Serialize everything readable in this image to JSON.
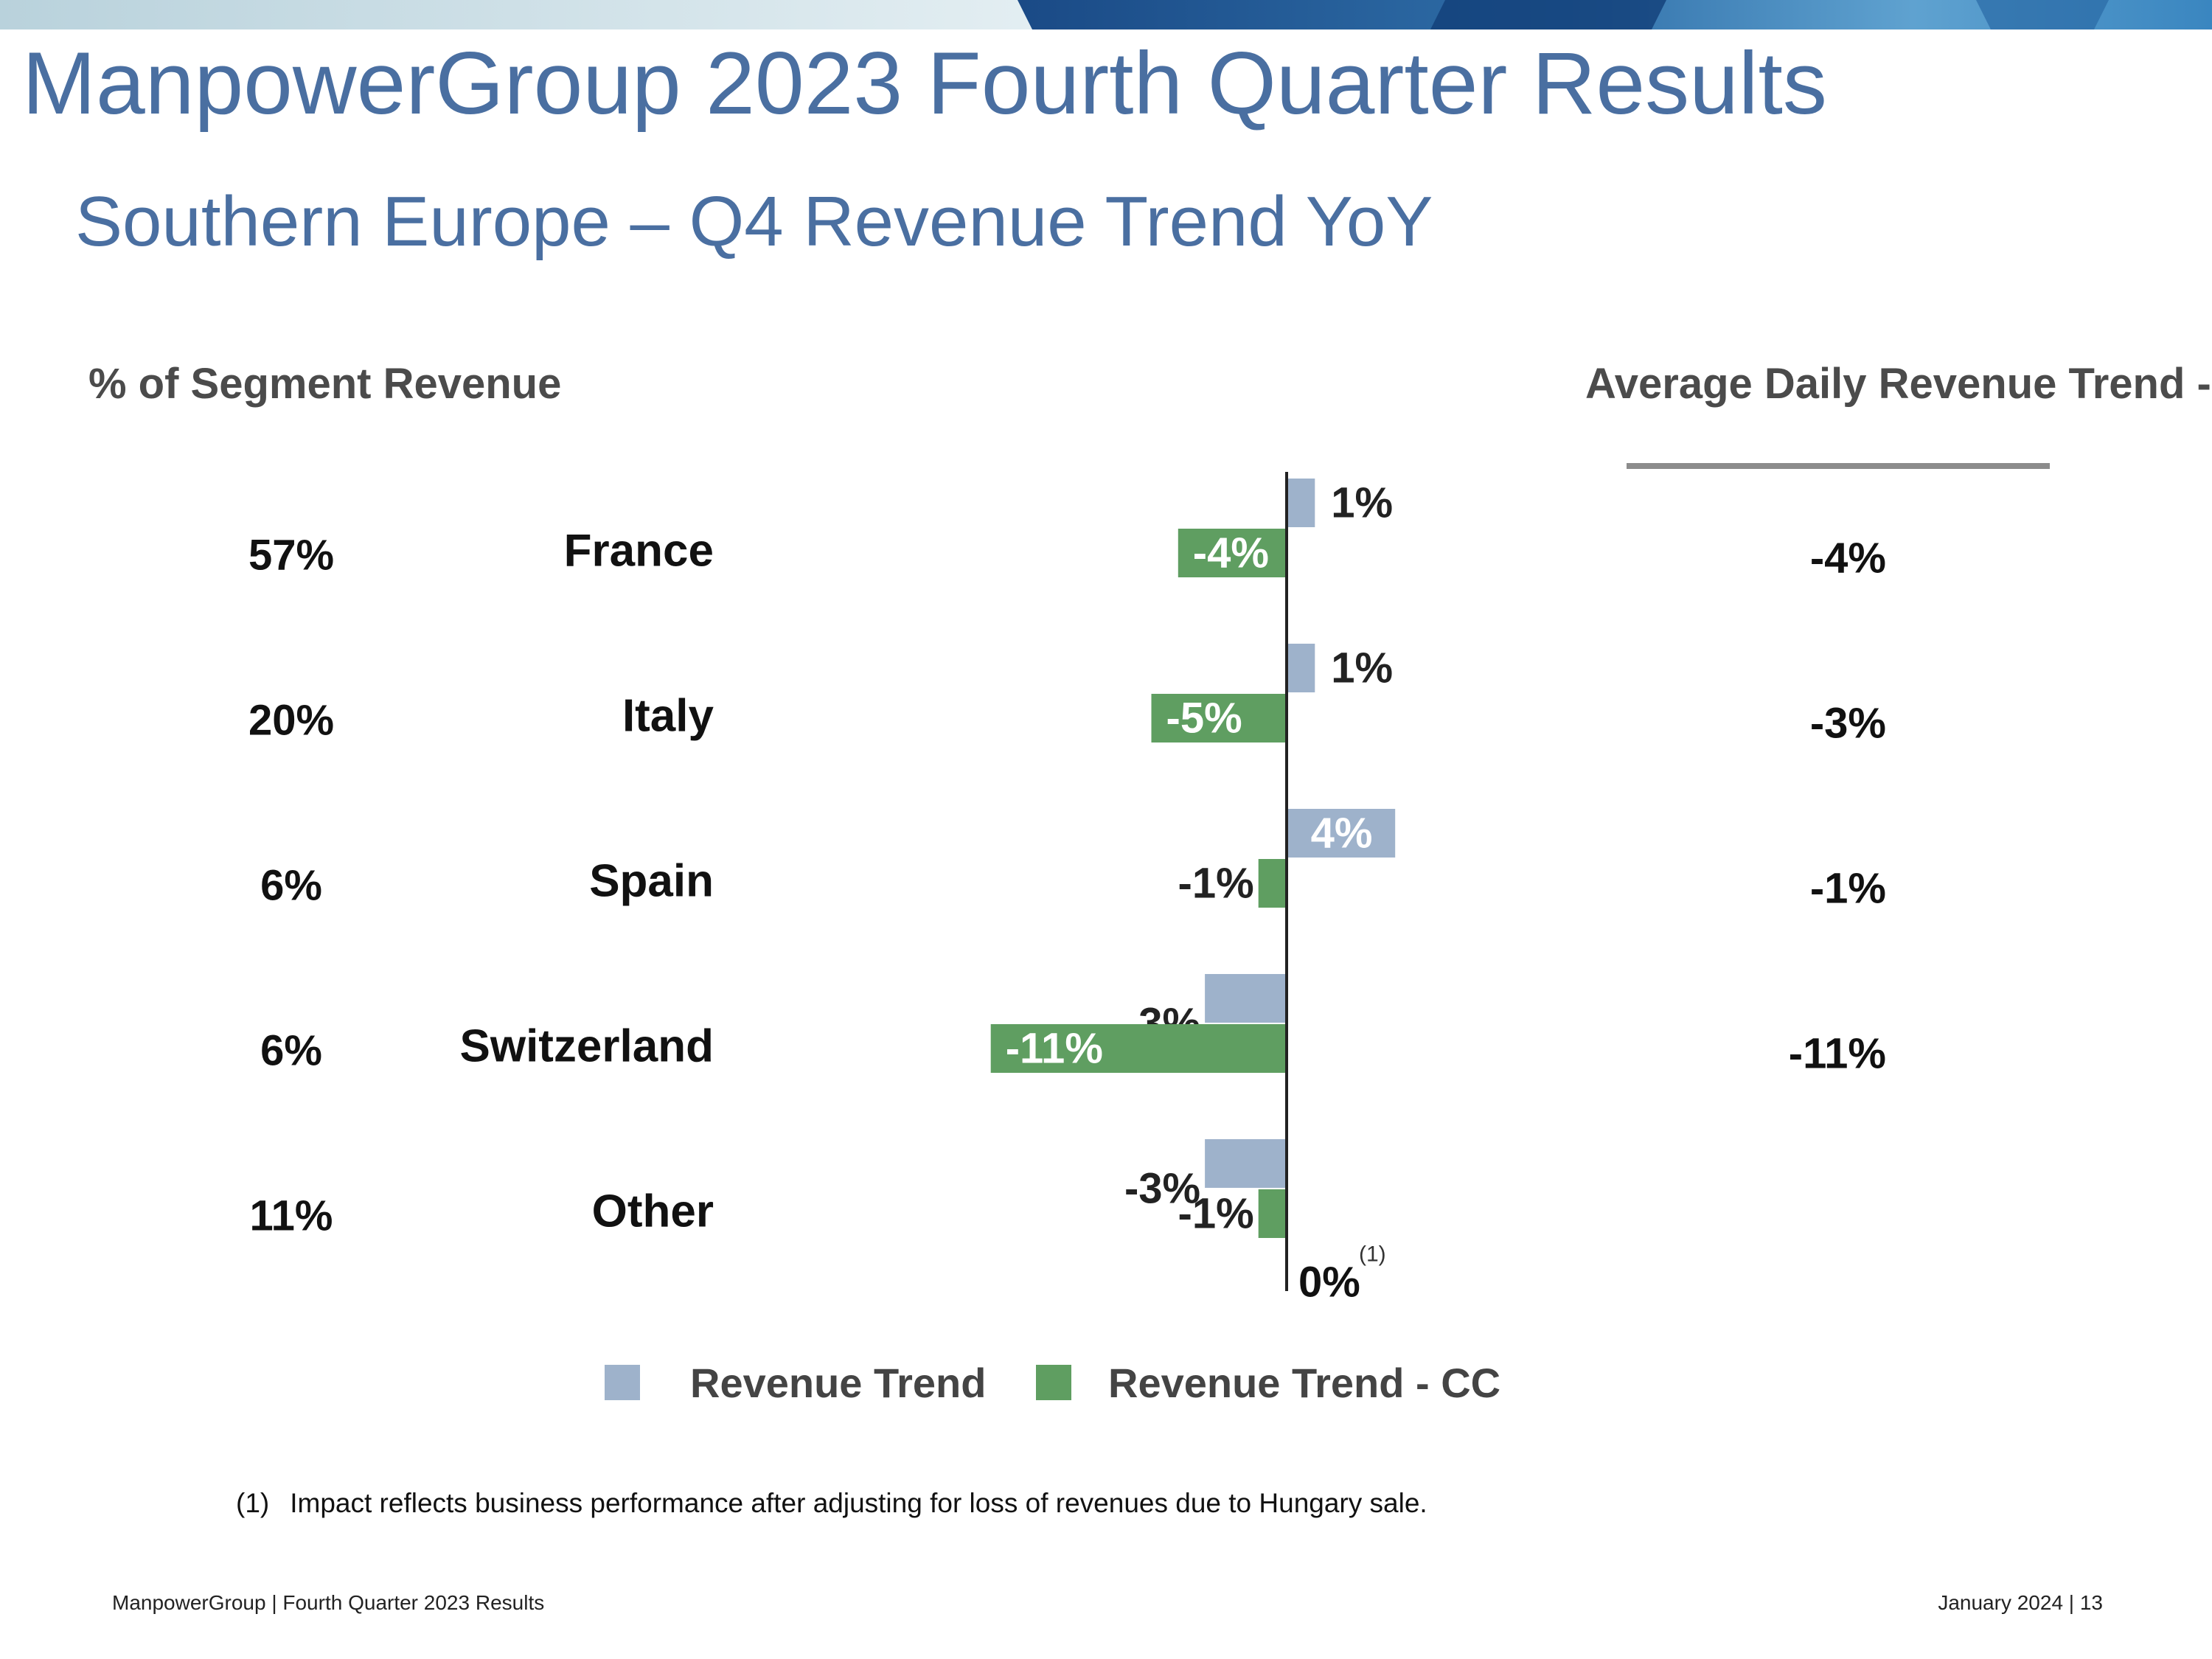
{
  "slide": {
    "title": "ManpowerGroup 2023 Fourth Quarter Results",
    "subtitle": "Southern Europe – Q4 Revenue Trend YoY",
    "footnote_marker": "(1)",
    "footnote_text": "Impact reflects business performance after adjusting for loss of revenues due to Hungary sale.",
    "footer_left": "ManpowerGroup  |  Fourth Quarter 2023 Results",
    "footer_right": "January 2024   |   13"
  },
  "colors": {
    "title": "#4a6fa1",
    "revenue_trend": "#9eb2cb",
    "revenue_trend_cc": "#5f9e61",
    "banner_light": "#c9dde6",
    "banner_dark": "#123f78"
  },
  "chart_data": {
    "type": "bar",
    "orientation": "horizontal",
    "title": "Southern Europe – Q4 Revenue Trend YoY",
    "columns": {
      "segment_share_header": "% of Segment Revenue",
      "avg_daily_header": "Average Daily Revenue Trend - CC"
    },
    "categories": [
      "France",
      "Italy",
      "Spain",
      "Switzerland",
      "Other"
    ],
    "segment_share": [
      "57%",
      "20%",
      "6%",
      "6%",
      "11%"
    ],
    "avg_daily_revenue_trend_cc": [
      "-4%",
      "-3%",
      "-1%",
      "-11%",
      ""
    ],
    "series": [
      {
        "name": "Revenue Trend",
        "values": [
          1,
          1,
          4,
          -3,
          -3
        ],
        "labels": [
          "1%",
          "1%",
          "4%",
          "-3%",
          "-3%"
        ]
      },
      {
        "name": "Revenue Trend - CC",
        "values": [
          -4,
          -5,
          -1,
          -11,
          -1
        ],
        "labels": [
          "-4%",
          "-5%",
          "-1%",
          "-11%",
          "-1%"
        ]
      }
    ],
    "extra_annotation": {
      "category": "Other",
      "label": "0%",
      "note": "(1)"
    },
    "legend": [
      "Revenue Trend",
      "Revenue Trend - CC"
    ],
    "legend_position": "bottom",
    "xlim": [
      -11,
      4
    ]
  }
}
